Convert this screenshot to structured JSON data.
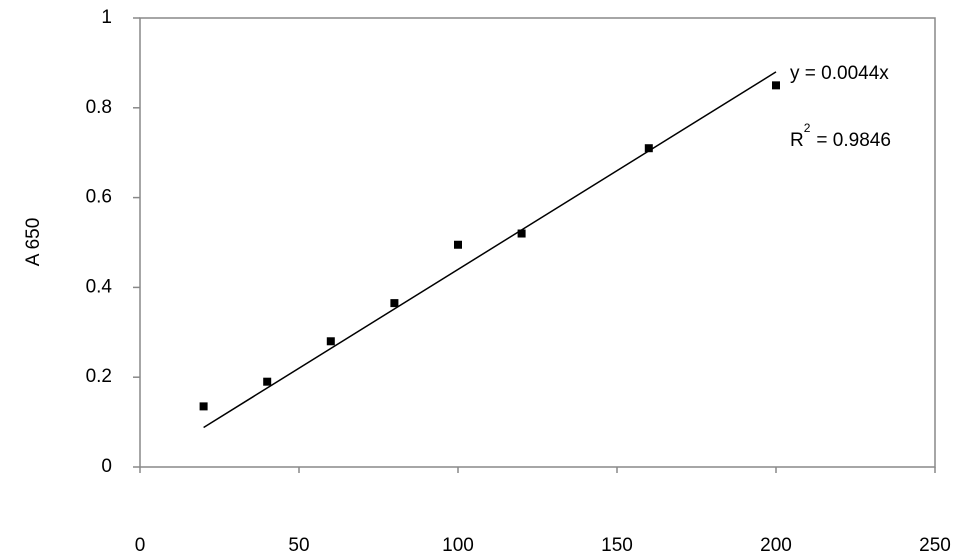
{
  "chart_data": {
    "type": "scatter",
    "y_label": "A 650",
    "x": [
      20,
      40,
      60,
      80,
      100,
      120,
      160,
      200
    ],
    "values": [
      0.135,
      0.19,
      0.28,
      0.365,
      0.495,
      0.52,
      0.71,
      0.85
    ],
    "color": "#000000",
    "xlim": [
      0,
      250
    ],
    "xticks": [
      0,
      50,
      100,
      150,
      200,
      250
    ],
    "ylim": [
      0,
      1
    ],
    "yticks": [
      0,
      0.2,
      0.4,
      0.6,
      0.8,
      1
    ],
    "trendline_slope": 0.0044,
    "equation": "y = 0.0044x",
    "r2_symbol": "R",
    "r2_exponent": "2",
    "r2_value": "= 0.9846"
  }
}
